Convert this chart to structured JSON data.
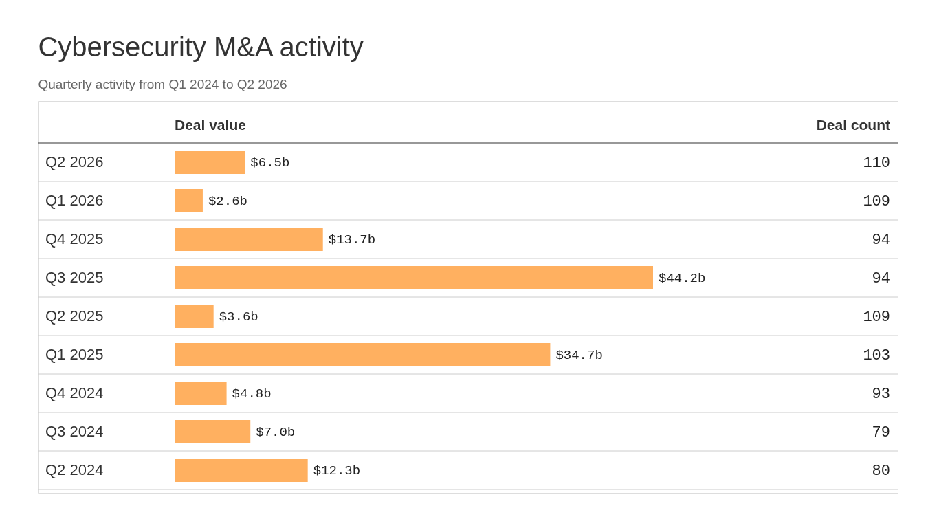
{
  "chart_data": {
    "type": "bar",
    "orientation": "horizontal",
    "title": "Cybersecurity M&A activity",
    "subtitle": "Quarterly activity from Q1 2024 to Q2 2026",
    "xlabel": "Deal value",
    "annotations": [
      "Deal count"
    ],
    "categories": [
      "Q2 2026",
      "Q1 2026",
      "Q4 2025",
      "Q3 2025",
      "Q2 2025",
      "Q1 2025",
      "Q4 2024",
      "Q3 2024",
      "Q2 2024"
    ],
    "values": [
      6.5,
      2.6,
      13.7,
      44.2,
      3.6,
      34.7,
      4.8,
      7.0,
      12.3
    ],
    "value_labels": [
      "$6.5b",
      "$2.6b",
      "$13.7b",
      "$44.2b",
      "$3.6b",
      "$34.7b",
      "$4.8b",
      "$7.0b",
      "$12.3b"
    ],
    "y2_categories": [
      "110",
      "109",
      "94",
      "94",
      "109",
      "103",
      "93",
      "79",
      "80"
    ],
    "color": "#ffb060",
    "grid": "y"
  }
}
